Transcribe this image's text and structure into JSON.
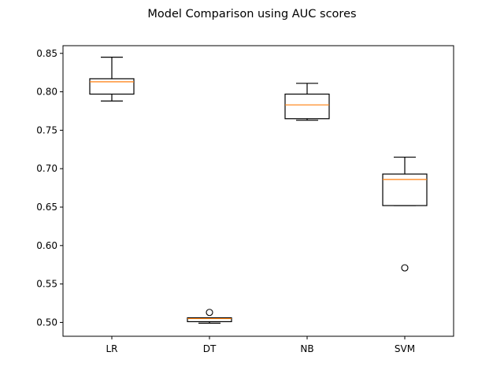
{
  "chart_data": {
    "type": "box",
    "title": "Model Comparison using AUC scores",
    "xlabel": "",
    "ylabel": "",
    "ylim": [
      0.482,
      0.86
    ],
    "yticks": [
      0.5,
      0.55,
      0.6,
      0.65,
      0.7,
      0.75,
      0.8,
      0.85
    ],
    "ytick_labels": [
      "0.50",
      "0.55",
      "0.60",
      "0.65",
      "0.70",
      "0.75",
      "0.80",
      "0.85"
    ],
    "categories": [
      "LR",
      "DT",
      "NB",
      "SVM"
    ],
    "boxes": [
      {
        "label": "LR",
        "whisker_low": 0.788,
        "q1": 0.797,
        "median": 0.813,
        "q3": 0.817,
        "whisker_high": 0.845,
        "outliers": []
      },
      {
        "label": "DT",
        "whisker_low": 0.499,
        "q1": 0.501,
        "median": 0.505,
        "q3": 0.506,
        "whisker_high": 0.506,
        "outliers": [
          0.513
        ]
      },
      {
        "label": "NB",
        "whisker_low": 0.763,
        "q1": 0.765,
        "median": 0.783,
        "q3": 0.797,
        "whisker_high": 0.811,
        "outliers": []
      },
      {
        "label": "SVM",
        "whisker_low": 0.652,
        "q1": 0.652,
        "median": 0.686,
        "q3": 0.693,
        "whisker_high": 0.715,
        "outliers": [
          0.571
        ]
      }
    ],
    "grid": false,
    "colors": {
      "box": "#000000",
      "median": "#ff7f0e",
      "outlier_edge": "#000000",
      "axes": "#000000",
      "background": "#ffffff"
    }
  }
}
